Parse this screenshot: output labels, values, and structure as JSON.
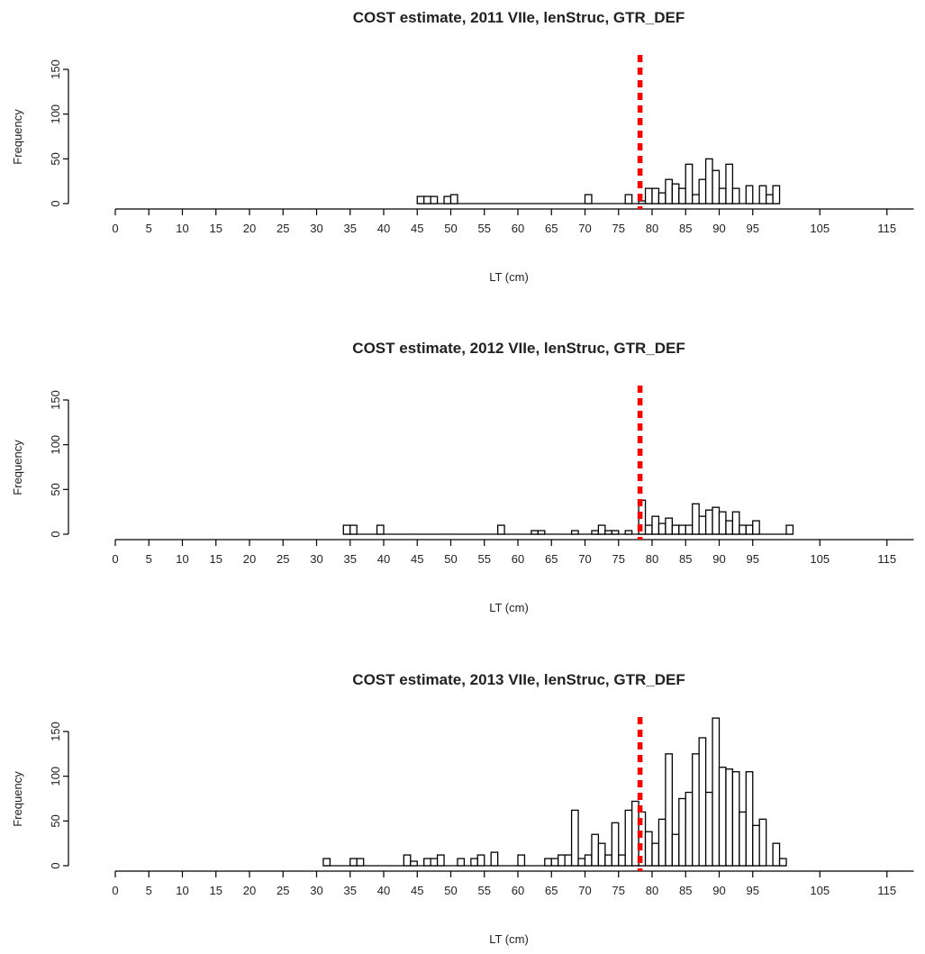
{
  "chart_data": [
    {
      "type": "bar",
      "title": "COST estimate, 2011 VIIe, lenStruc, GTR_DEF",
      "xlabel": "LT (cm)",
      "ylabel": "Frequency",
      "xlim": [
        0,
        119
      ],
      "ylim": [
        0,
        150
      ],
      "x_ticks": [
        0,
        5,
        10,
        15,
        20,
        25,
        30,
        35,
        40,
        45,
        50,
        55,
        60,
        65,
        70,
        75,
        80,
        85,
        90,
        95,
        105,
        115
      ],
      "y_ticks": [
        0,
        50,
        100,
        150
      ],
      "bin_width": 1,
      "reference_line": {
        "x": 78,
        "color": "#ff0000",
        "style": "dotted"
      },
      "bins": [
        {
          "x": 45,
          "y": 8
        },
        {
          "x": 46,
          "y": 8
        },
        {
          "x": 47,
          "y": 8
        },
        {
          "x": 49,
          "y": 8
        },
        {
          "x": 50,
          "y": 10
        },
        {
          "x": 70,
          "y": 10
        },
        {
          "x": 76,
          "y": 10
        },
        {
          "x": 78,
          "y": 3
        },
        {
          "x": 79,
          "y": 17
        },
        {
          "x": 80,
          "y": 17
        },
        {
          "x": 81,
          "y": 12
        },
        {
          "x": 82,
          "y": 27
        },
        {
          "x": 83,
          "y": 22
        },
        {
          "x": 84,
          "y": 17
        },
        {
          "x": 85,
          "y": 44
        },
        {
          "x": 86,
          "y": 10
        },
        {
          "x": 87,
          "y": 27
        },
        {
          "x": 88,
          "y": 50
        },
        {
          "x": 89,
          "y": 37
        },
        {
          "x": 90,
          "y": 17
        },
        {
          "x": 91,
          "y": 44
        },
        {
          "x": 92,
          "y": 17
        },
        {
          "x": 94,
          "y": 20
        },
        {
          "x": 96,
          "y": 20
        },
        {
          "x": 97,
          "y": 10
        },
        {
          "x": 98,
          "y": 20
        }
      ]
    },
    {
      "type": "bar",
      "title": "COST estimate, 2012 VIIe, lenStruc, GTR_DEF",
      "xlabel": "LT (cm)",
      "ylabel": "Frequency",
      "xlim": [
        0,
        119
      ],
      "ylim": [
        0,
        150
      ],
      "x_ticks": [
        0,
        5,
        10,
        15,
        20,
        25,
        30,
        35,
        40,
        45,
        50,
        55,
        60,
        65,
        70,
        75,
        80,
        85,
        90,
        95,
        105,
        115
      ],
      "y_ticks": [
        0,
        50,
        100,
        150
      ],
      "bin_width": 1,
      "reference_line": {
        "x": 78,
        "color": "#ff0000",
        "style": "dotted"
      },
      "bins": [
        {
          "x": 34,
          "y": 10
        },
        {
          "x": 35,
          "y": 10
        },
        {
          "x": 39,
          "y": 10
        },
        {
          "x": 57,
          "y": 10
        },
        {
          "x": 62,
          "y": 4
        },
        {
          "x": 63,
          "y": 4
        },
        {
          "x": 68,
          "y": 4
        },
        {
          "x": 71,
          "y": 4
        },
        {
          "x": 72,
          "y": 10
        },
        {
          "x": 73,
          "y": 4
        },
        {
          "x": 74,
          "y": 4
        },
        {
          "x": 76,
          "y": 4
        },
        {
          "x": 78,
          "y": 38
        },
        {
          "x": 79,
          "y": 10
        },
        {
          "x": 80,
          "y": 20
        },
        {
          "x": 81,
          "y": 12
        },
        {
          "x": 82,
          "y": 18
        },
        {
          "x": 83,
          "y": 10
        },
        {
          "x": 84,
          "y": 10
        },
        {
          "x": 85,
          "y": 10
        },
        {
          "x": 86,
          "y": 34
        },
        {
          "x": 87,
          "y": 20
        },
        {
          "x": 88,
          "y": 27
        },
        {
          "x": 89,
          "y": 30
        },
        {
          "x": 90,
          "y": 25
        },
        {
          "x": 91,
          "y": 15
        },
        {
          "x": 92,
          "y": 25
        },
        {
          "x": 93,
          "y": 10
        },
        {
          "x": 94,
          "y": 10
        },
        {
          "x": 95,
          "y": 15
        },
        {
          "x": 100,
          "y": 10
        }
      ]
    },
    {
      "type": "bar",
      "title": "COST estimate, 2013 VIIe, lenStruc, GTR_DEF",
      "xlabel": "LT (cm)",
      "ylabel": "Frequency",
      "xlim": [
        0,
        119
      ],
      "ylim": [
        0,
        150
      ],
      "x_ticks": [
        0,
        5,
        10,
        15,
        20,
        25,
        30,
        35,
        40,
        45,
        50,
        55,
        60,
        65,
        70,
        75,
        80,
        85,
        90,
        95,
        105,
        115
      ],
      "y_ticks": [
        0,
        50,
        100,
        150
      ],
      "bin_width": 1,
      "reference_line": {
        "x": 78,
        "color": "#ff0000",
        "style": "dotted"
      },
      "bins": [
        {
          "x": 31,
          "y": 8
        },
        {
          "x": 35,
          "y": 8
        },
        {
          "x": 36,
          "y": 8
        },
        {
          "x": 43,
          "y": 12
        },
        {
          "x": 44,
          "y": 5
        },
        {
          "x": 46,
          "y": 8
        },
        {
          "x": 47,
          "y": 8
        },
        {
          "x": 48,
          "y": 12
        },
        {
          "x": 51,
          "y": 8
        },
        {
          "x": 53,
          "y": 8
        },
        {
          "x": 54,
          "y": 12
        },
        {
          "x": 56,
          "y": 15
        },
        {
          "x": 60,
          "y": 12
        },
        {
          "x": 64,
          "y": 8
        },
        {
          "x": 65,
          "y": 8
        },
        {
          "x": 66,
          "y": 12
        },
        {
          "x": 67,
          "y": 12
        },
        {
          "x": 68,
          "y": 62
        },
        {
          "x": 69,
          "y": 8
        },
        {
          "x": 70,
          "y": 12
        },
        {
          "x": 71,
          "y": 35
        },
        {
          "x": 72,
          "y": 25
        },
        {
          "x": 73,
          "y": 12
        },
        {
          "x": 74,
          "y": 48
        },
        {
          "x": 75,
          "y": 12
        },
        {
          "x": 76,
          "y": 62
        },
        {
          "x": 77,
          "y": 72
        },
        {
          "x": 78,
          "y": 60
        },
        {
          "x": 79,
          "y": 38
        },
        {
          "x": 80,
          "y": 25
        },
        {
          "x": 81,
          "y": 52
        },
        {
          "x": 82,
          "y": 125
        },
        {
          "x": 83,
          "y": 35
        },
        {
          "x": 84,
          "y": 75
        },
        {
          "x": 85,
          "y": 82
        },
        {
          "x": 86,
          "y": 125
        },
        {
          "x": 87,
          "y": 143
        },
        {
          "x": 88,
          "y": 82
        },
        {
          "x": 89,
          "y": 165
        },
        {
          "x": 90,
          "y": 110
        },
        {
          "x": 91,
          "y": 108
        },
        {
          "x": 92,
          "y": 105
        },
        {
          "x": 93,
          "y": 60
        },
        {
          "x": 94,
          "y": 105
        },
        {
          "x": 95,
          "y": 45
        },
        {
          "x": 96,
          "y": 52
        },
        {
          "x": 98,
          "y": 25
        },
        {
          "x": 99,
          "y": 8
        }
      ]
    }
  ]
}
